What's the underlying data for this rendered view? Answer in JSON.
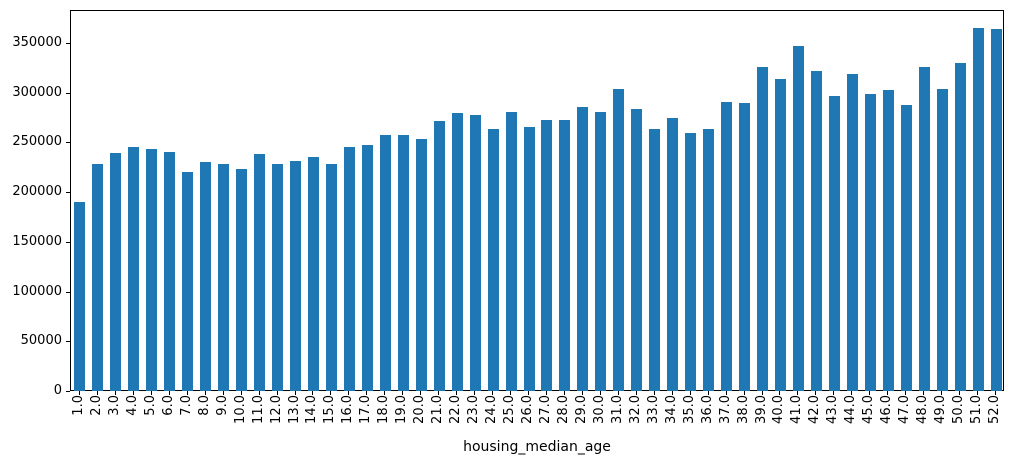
{
  "chart_data": {
    "type": "bar",
    "title": "",
    "xlabel": "housing_median_age",
    "ylabel": "",
    "categories": [
      "1.0",
      "2.0",
      "3.0",
      "4.0",
      "5.0",
      "6.0",
      "7.0",
      "8.0",
      "9.0",
      "10.0",
      "11.0",
      "12.0",
      "13.0",
      "14.0",
      "15.0",
      "16.0",
      "17.0",
      "18.0",
      "19.0",
      "20.0",
      "21.0",
      "22.0",
      "23.0",
      "24.0",
      "25.0",
      "26.0",
      "27.0",
      "28.0",
      "29.0",
      "30.0",
      "31.0",
      "32.0",
      "33.0",
      "34.0",
      "35.0",
      "36.0",
      "37.0",
      "38.0",
      "39.0",
      "40.0",
      "41.0",
      "42.0",
      "43.0",
      "44.0",
      "45.0",
      "46.0",
      "47.0",
      "48.0",
      "49.0",
      "50.0",
      "51.0",
      "52.0"
    ],
    "values": [
      190000,
      228000,
      239000,
      245000,
      243000,
      240000,
      220000,
      230000,
      228000,
      223000,
      238000,
      228000,
      231000,
      235000,
      228000,
      245000,
      247000,
      257000,
      257000,
      253000,
      271000,
      279000,
      277000,
      263000,
      280000,
      265000,
      272000,
      272000,
      285000,
      280000,
      304000,
      283000,
      263000,
      274000,
      259000,
      263000,
      291000,
      290000,
      326000,
      314000,
      347000,
      322000,
      297000,
      319000,
      299000,
      303000,
      287000,
      326000,
      304000,
      330000,
      365000,
      364000
    ],
    "ylim": [
      0,
      383000
    ],
    "yticks": [
      0,
      50000,
      100000,
      150000,
      200000,
      250000,
      300000,
      350000
    ],
    "x_tick_rotation": 90,
    "grid": false,
    "legend": "none",
    "bar_color": "#1f77b4",
    "axis_color": "#000000",
    "background_color": "#ffffff"
  }
}
